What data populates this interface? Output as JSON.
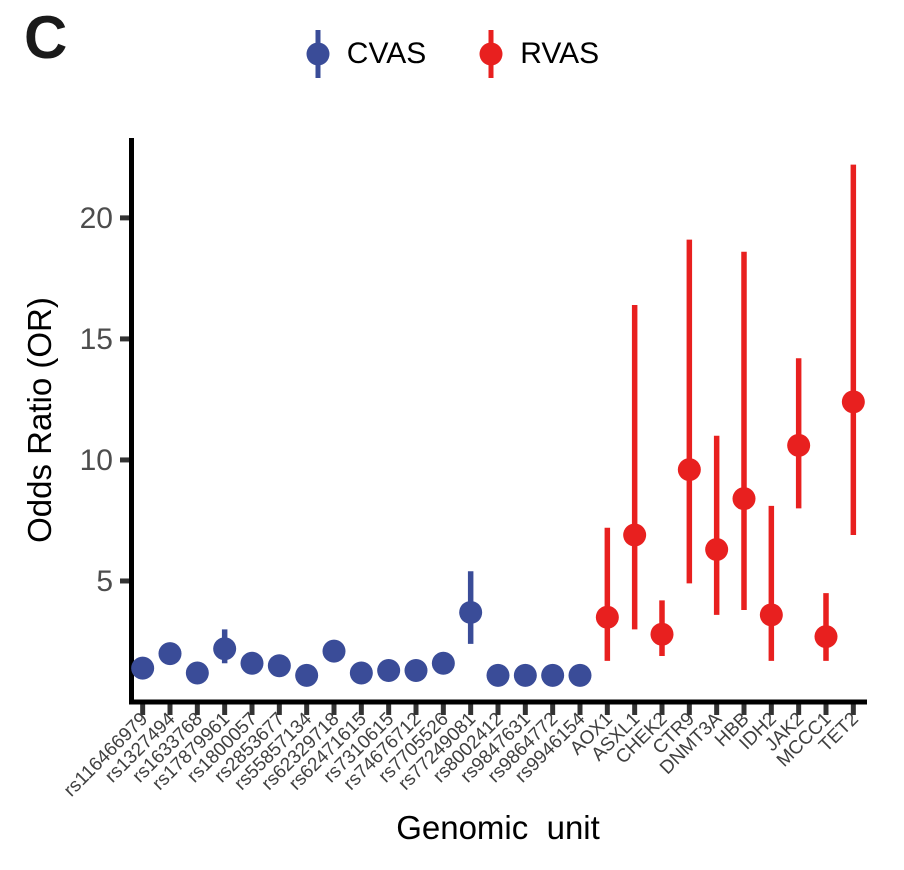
{
  "panel_label": "C",
  "legend": {
    "items": [
      {
        "label": "CVAS",
        "color": "#3A4C98"
      },
      {
        "label": "RVAS",
        "color": "#E8201F"
      }
    ]
  },
  "axes": {
    "y_title": "Odds Ratio (OR)",
    "x_title": "Genomic  unit"
  },
  "colors": {
    "cvas": "#3A4C98",
    "rvas": "#E8201F",
    "axis_line": "#000000",
    "tick_mark": "#333333",
    "y_tick_label": "#4D4D4D",
    "x_tick_label": "#404040"
  },
  "chart_data": {
    "type": "scatter",
    "title": "",
    "xlabel": "Genomic unit",
    "ylabel": "Odds Ratio (OR)",
    "ylim": [
      0,
      23.3
    ],
    "y_ticks": [
      5,
      10,
      15,
      20
    ],
    "grid": false,
    "legend_position": "top-center",
    "series_key": "group",
    "points": [
      {
        "category": "rs116466979",
        "group": "CVAS",
        "or": 1.4
      },
      {
        "category": "rs1327494",
        "group": "CVAS",
        "or": 2.0
      },
      {
        "category": "rs1633768",
        "group": "CVAS",
        "or": 1.2
      },
      {
        "category": "rs17879961",
        "group": "CVAS",
        "or": 2.2,
        "ci": [
          1.6,
          3.0
        ]
      },
      {
        "category": "rs1800057",
        "group": "CVAS",
        "or": 1.6
      },
      {
        "category": "rs2853677",
        "group": "CVAS",
        "or": 1.5
      },
      {
        "category": "rs55857134",
        "group": "CVAS",
        "or": 1.1
      },
      {
        "category": "rs62329718",
        "group": "CVAS",
        "or": 2.1
      },
      {
        "category": "rs62471615",
        "group": "CVAS",
        "or": 1.2
      },
      {
        "category": "rs7310615",
        "group": "CVAS",
        "or": 1.3
      },
      {
        "category": "rs74676712",
        "group": "CVAS",
        "or": 1.3
      },
      {
        "category": "rs7705526",
        "group": "CVAS",
        "or": 1.6
      },
      {
        "category": "rs77249081",
        "group": "CVAS",
        "or": 3.7,
        "ci": [
          2.4,
          5.4
        ]
      },
      {
        "category": "rs8002412",
        "group": "CVAS",
        "or": 1.1
      },
      {
        "category": "rs9847631",
        "group": "CVAS",
        "or": 1.1
      },
      {
        "category": "rs9864772",
        "group": "CVAS",
        "or": 1.1
      },
      {
        "category": "rs9946154",
        "group": "CVAS",
        "or": 1.1
      },
      {
        "category": "AOX1",
        "group": "RVAS",
        "or": 3.5,
        "ci": [
          1.7,
          7.2
        ]
      },
      {
        "category": "ASXL1",
        "group": "RVAS",
        "or": 6.9,
        "ci": [
          3.0,
          16.4
        ]
      },
      {
        "category": "CHEK2",
        "group": "RVAS",
        "or": 2.8,
        "ci": [
          1.9,
          4.2
        ]
      },
      {
        "category": "CTR9",
        "group": "RVAS",
        "or": 9.6,
        "ci": [
          4.9,
          19.1
        ]
      },
      {
        "category": "DNMT3A",
        "group": "RVAS",
        "or": 6.3,
        "ci": [
          3.6,
          11.0
        ]
      },
      {
        "category": "HBB",
        "group": "RVAS",
        "or": 8.4,
        "ci": [
          3.8,
          18.6
        ]
      },
      {
        "category": "IDH2",
        "group": "RVAS",
        "or": 3.6,
        "ci": [
          1.7,
          8.1
        ]
      },
      {
        "category": "JAK2",
        "group": "RVAS",
        "or": 10.6,
        "ci": [
          8.0,
          14.2
        ]
      },
      {
        "category": "MCCC1",
        "group": "RVAS",
        "or": 2.7,
        "ci": [
          1.7,
          4.5
        ]
      },
      {
        "category": "TET2",
        "group": "RVAS",
        "or": 12.4,
        "ci": [
          6.9,
          22.2
        ]
      }
    ]
  }
}
